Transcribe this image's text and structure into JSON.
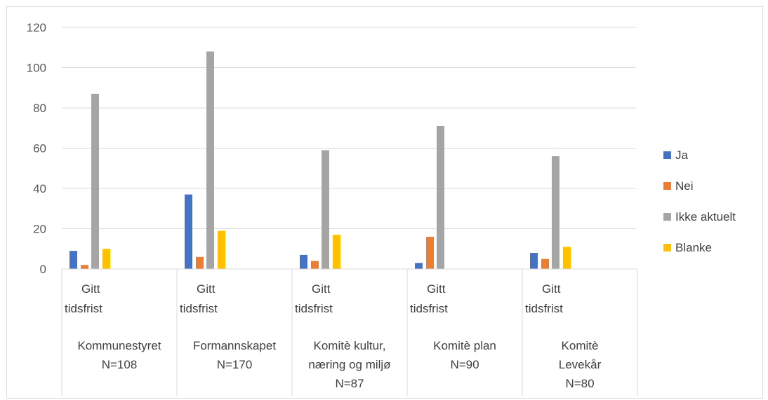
{
  "chart_data": {
    "type": "bar",
    "categories": [
      {
        "top": [
          "Gitt",
          "tidsfrist"
        ],
        "bottom": [
          "Kommunestyret",
          "N=108"
        ]
      },
      {
        "top": [
          "Gitt",
          "tidsfrist"
        ],
        "bottom": [
          "Formannskapet",
          "N=170"
        ]
      },
      {
        "top": [
          "Gitt",
          "tidsfrist"
        ],
        "bottom": [
          "Komitè kultur,",
          "næring og miljø",
          "N=87"
        ]
      },
      {
        "top": [
          "Gitt",
          "tidsfrist"
        ],
        "bottom": [
          "Komitè plan",
          "N=90"
        ]
      },
      {
        "top": [
          "Gitt",
          "tidsfrist"
        ],
        "bottom": [
          "Komitè",
          "Levekår",
          "N=80"
        ]
      }
    ],
    "series": [
      {
        "name": "Ja",
        "color": "#4472C4",
        "values": [
          9,
          37,
          7,
          3,
          8
        ]
      },
      {
        "name": "Nei",
        "color": "#ED7D31",
        "values": [
          2,
          6,
          4,
          16,
          5
        ]
      },
      {
        "name": "Ikke aktuelt",
        "color": "#A5A5A5",
        "values": [
          87,
          108,
          59,
          71,
          56
        ]
      },
      {
        "name": "Blanke",
        "color": "#FFC000",
        "values": [
          10,
          19,
          17,
          0,
          11
        ]
      }
    ],
    "yticks": [
      "0",
      "20",
      "40",
      "60",
      "80",
      "100",
      "120"
    ],
    "ylim": [
      0,
      120
    ],
    "grid": true,
    "legend_position": "right"
  }
}
